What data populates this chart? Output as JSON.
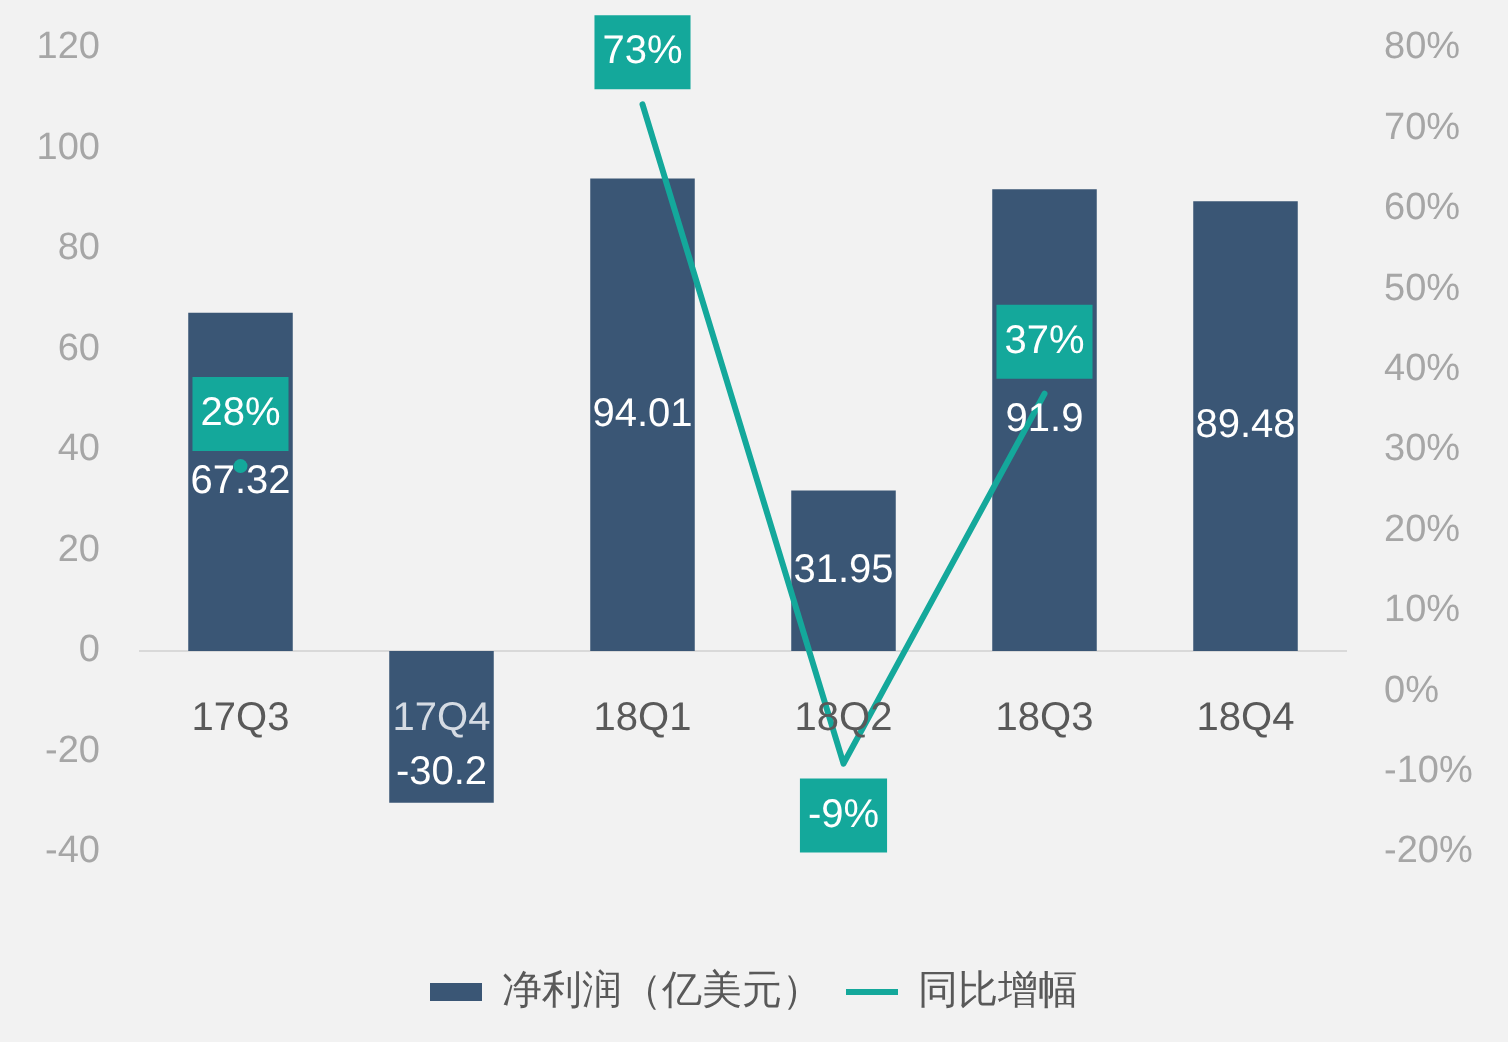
{
  "chart_data": {
    "type": "bar",
    "categories": [
      "17Q3",
      "17Q4",
      "18Q1",
      "18Q2",
      "18Q3",
      "18Q4"
    ],
    "series": [
      {
        "name": "净利润（亿美元）",
        "color": "#3a5675",
        "values": [
          67.32,
          -30.2,
          94.01,
          31.95,
          91.9,
          89.48
        ],
        "value_labels": [
          "67.32",
          "-30.2",
          "94.01",
          "31.95",
          "91.9",
          "89.48"
        ]
      },
      {
        "name": "同比增幅",
        "type": "line",
        "axis": "y2",
        "color": "#14a89b",
        "values": [
          28,
          null,
          73,
          -9,
          37,
          null
        ],
        "value_labels": [
          "28%",
          null,
          "73%",
          "-9%",
          "37%",
          null
        ]
      }
    ],
    "ylim": [
      -40,
      120
    ],
    "yticks": [
      -40,
      -20,
      0,
      20,
      40,
      60,
      80,
      100,
      120
    ],
    "y2lim": [
      -20,
      80
    ],
    "y2ticks": [
      {
        "value": -20,
        "label": "-20%"
      },
      {
        "value": -10,
        "label": "-10%"
      },
      {
        "value": 0,
        "label": "0%"
      },
      {
        "value": 10,
        "label": "10%"
      },
      {
        "value": 20,
        "label": "20%"
      },
      {
        "value": 30,
        "label": "30%"
      },
      {
        "value": 40,
        "label": "40%"
      },
      {
        "value": 50,
        "label": "50%"
      },
      {
        "value": 60,
        "label": "60%"
      },
      {
        "value": 70,
        "label": "70%"
      },
      {
        "value": 80,
        "label": "80%"
      }
    ],
    "legend": "bottom"
  }
}
